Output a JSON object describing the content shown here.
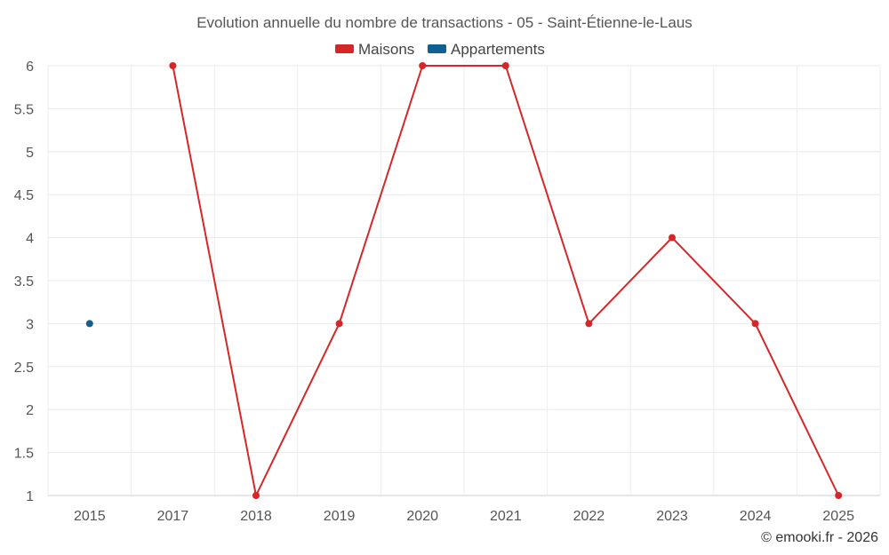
{
  "chart_data": {
    "type": "line",
    "title": "Evolution annuelle du nombre de transactions - 05 - Saint-Étienne-le-Laus",
    "categories": [
      "2015",
      "2017",
      "2018",
      "2019",
      "2020",
      "2021",
      "2022",
      "2023",
      "2024",
      "2025"
    ],
    "series": [
      {
        "name": "Maisons",
        "color": "#d62728",
        "values": [
          null,
          6,
          1,
          3,
          6,
          6,
          3,
          4,
          3,
          1
        ]
      },
      {
        "name": "Appartements",
        "color": "#0e6095",
        "values": [
          3,
          null,
          null,
          null,
          null,
          null,
          null,
          null,
          null,
          null
        ]
      }
    ],
    "ylim": [
      1,
      6
    ],
    "yticks": [
      1,
      1.5,
      2,
      2.5,
      3,
      3.5,
      4,
      4.5,
      5,
      5.5,
      6
    ],
    "ytick_labels": [
      "1",
      "1.5",
      "2",
      "2.5",
      "3",
      "3.5",
      "4",
      "4.5",
      "5",
      "5.5",
      "6"
    ],
    "xlabel": "",
    "ylabel": "",
    "grid": true,
    "legend_position": "top-center"
  },
  "credit": "© emooki.fr - 2026"
}
